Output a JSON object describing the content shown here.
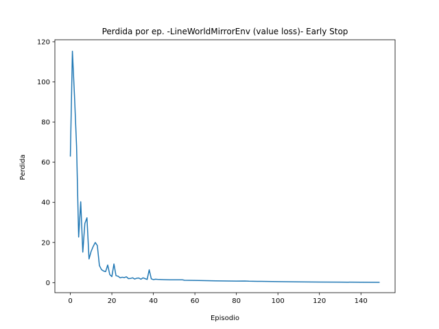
{
  "chart_data": {
    "type": "line",
    "title": "Perdida por ep. -LineWorldMirrorEnv (value loss)- Early Stop",
    "xlabel": "Episodio",
    "ylabel": "Perdida",
    "xlim": [
      -7.45,
      156.45
    ],
    "ylim": [
      -5.0,
      121.0
    ],
    "xticks": [
      0,
      20,
      40,
      60,
      80,
      100,
      120,
      140
    ],
    "yticks": [
      0,
      20,
      40,
      60,
      80,
      100,
      120
    ],
    "grid": false,
    "line_color": "#1f77b4",
    "series": [
      {
        "points": [
          [
            0,
            62.8
          ],
          [
            1,
            115.3
          ],
          [
            2,
            93.0
          ],
          [
            3,
            68.0
          ],
          [
            4,
            22.7
          ],
          [
            5,
            40.3
          ],
          [
            6,
            15.2
          ],
          [
            7,
            29.5
          ],
          [
            8,
            32.3
          ],
          [
            9,
            11.8
          ],
          [
            10,
            15.5
          ],
          [
            11,
            18.0
          ],
          [
            12,
            20.0
          ],
          [
            13,
            18.5
          ],
          [
            14,
            8.5
          ],
          [
            15,
            6.5
          ],
          [
            16,
            5.8
          ],
          [
            17,
            5.5
          ],
          [
            18,
            8.8
          ],
          [
            19,
            4.0
          ],
          [
            20,
            3.0
          ],
          [
            21,
            9.3
          ],
          [
            22,
            3.5
          ],
          [
            23,
            3.2
          ],
          [
            24,
            2.4
          ],
          [
            25,
            2.7
          ],
          [
            26,
            2.5
          ],
          [
            27,
            2.9
          ],
          [
            28,
            2.0
          ],
          [
            29,
            2.1
          ],
          [
            30,
            2.4
          ],
          [
            31,
            1.8
          ],
          [
            32,
            2.2
          ],
          [
            33,
            2.3
          ],
          [
            34,
            1.7
          ],
          [
            35,
            2.4
          ],
          [
            36,
            2.0
          ],
          [
            37,
            1.6
          ],
          [
            38,
            6.4
          ],
          [
            39,
            1.9
          ],
          [
            40,
            1.5
          ],
          [
            41,
            1.7
          ],
          [
            42,
            1.6
          ],
          [
            45,
            1.5
          ],
          [
            48,
            1.4
          ],
          [
            50,
            1.4
          ],
          [
            54,
            1.4
          ],
          [
            55,
            1.2
          ],
          [
            60,
            1.1
          ],
          [
            70,
            0.9
          ],
          [
            80,
            0.75
          ],
          [
            84,
            0.8
          ],
          [
            86,
            0.7
          ],
          [
            90,
            0.65
          ],
          [
            100,
            0.5
          ],
          [
            110,
            0.4
          ],
          [
            120,
            0.3
          ],
          [
            130,
            0.25
          ],
          [
            140,
            0.2
          ],
          [
            149,
            0.15
          ]
        ]
      }
    ]
  }
}
